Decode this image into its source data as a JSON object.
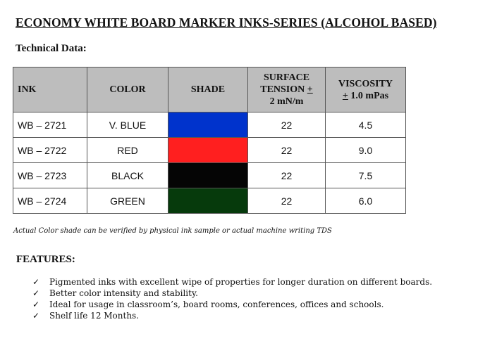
{
  "title": "ECONOMY WHITE BOARD MARKER INKS-SERIES (ALCOHOL BASED)",
  "subheading": "Technical Data:",
  "table": {
    "headers": {
      "ink": "INK",
      "color": "COLOR",
      "shade": "SHADE",
      "surface_line1": "SURFACE",
      "surface_line2": "TENSION ",
      "surface_pm": "+",
      "surface_line3": "2 mN/m",
      "viscosity_line1": "VISCOSITY",
      "viscosity_pm": "+",
      "viscosity_line2": " 1.0 mPas"
    },
    "rows": [
      {
        "ink": "WB – 2721",
        "color": "V. BLUE",
        "shade_color": "#0033cc",
        "surface_tension": "22",
        "viscosity": "4.5"
      },
      {
        "ink": "WB – 2722",
        "color": "RED",
        "shade_color": "#ff1f1f",
        "surface_tension": "22",
        "viscosity": "9.0"
      },
      {
        "ink": "WB – 2723",
        "color": "BLACK",
        "shade_color": "#050505",
        "surface_tension": "22",
        "viscosity": "7.5"
      },
      {
        "ink": "WB – 2724",
        "color": "GREEN",
        "shade_color": "#063a0c",
        "surface_tension": "22",
        "viscosity": "6.0"
      }
    ]
  },
  "note": "Actual Color shade can be verified by physical ink sample or actual machine writing TDS",
  "features": {
    "heading": "FEATURES:",
    "check_icon": "✓",
    "items": [
      "Pigmented inks with excellent wipe of properties for longer duration on different boards.",
      "Better color intensity and stability.",
      "Ideal for usage in classroom’s, board rooms, conferences, offices and schools.",
      "Shelf life 12 Months."
    ]
  }
}
